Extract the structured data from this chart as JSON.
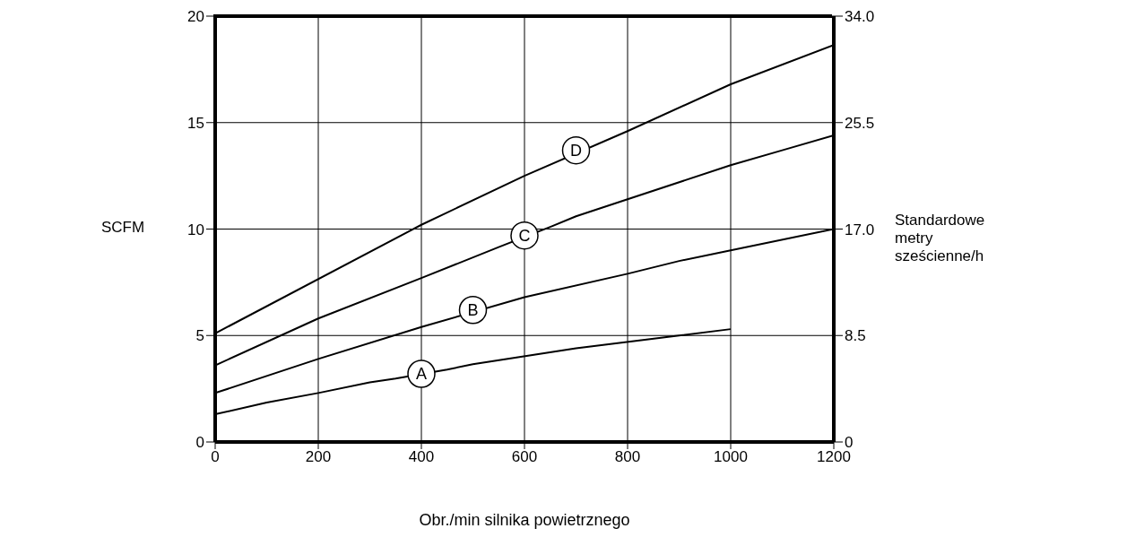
{
  "chart_data": {
    "type": "line",
    "xlabel": "Obr./min silnika powietrznego",
    "ylabel": "SCFM",
    "y2label": "Standardowe metry sześcienne/h",
    "xlim": [
      0,
      1200
    ],
    "xticks": [
      0,
      200,
      400,
      600,
      800,
      1000,
      1200
    ],
    "ylim": [
      0,
      20
    ],
    "yticks": [
      0,
      5,
      10,
      15,
      20
    ],
    "y2lim": [
      0,
      34
    ],
    "y2ticks": [
      0,
      {
        "value": 8.5,
        "label": "8.5"
      },
      {
        "value": 17,
        "label": "17.0"
      },
      {
        "value": 25.5,
        "label": "25.5"
      },
      {
        "value": 34,
        "label": "34.0"
      }
    ],
    "grid": true,
    "marker": "none",
    "line_style": "solid",
    "series": [
      {
        "color": "#000000",
        "x": [
          0,
          100,
          200,
          300,
          350,
          450,
          500,
          700,
          900,
          1000
        ],
        "values": [
          1.3,
          1.85,
          2.3,
          2.8,
          2.98,
          3.4,
          3.65,
          4.4,
          5.0,
          5.3
        ]
      },
      {
        "color": "#000000",
        "x": [
          0,
          200,
          400,
          600,
          800,
          900,
          1000,
          1200
        ],
        "values": [
          2.3,
          3.9,
          5.4,
          6.8,
          7.9,
          8.5,
          9.0,
          10.0
        ]
      },
      {
        "color": "#000000",
        "x": [
          0,
          200,
          400,
          550,
          650,
          700,
          800,
          1000,
          1100,
          1200
        ],
        "values": [
          3.6,
          5.8,
          7.7,
          9.15,
          10.1,
          10.6,
          11.4,
          13.0,
          13.7,
          14.4
        ]
      },
      {
        "color": "#000000",
        "x": [
          0,
          400,
          600,
          800,
          1000,
          1200
        ],
        "values": [
          5.1,
          10.2,
          12.5,
          14.6,
          16.8,
          18.65
        ]
      }
    ],
    "annotations": [
      {
        "text": "A",
        "x": 400,
        "y": 3.2
      },
      {
        "text": "B",
        "x": 500,
        "y": 6.2
      },
      {
        "text": "C",
        "x": 600,
        "y": 9.7
      },
      {
        "text": "D",
        "x": 700,
        "y": 13.7
      }
    ]
  }
}
